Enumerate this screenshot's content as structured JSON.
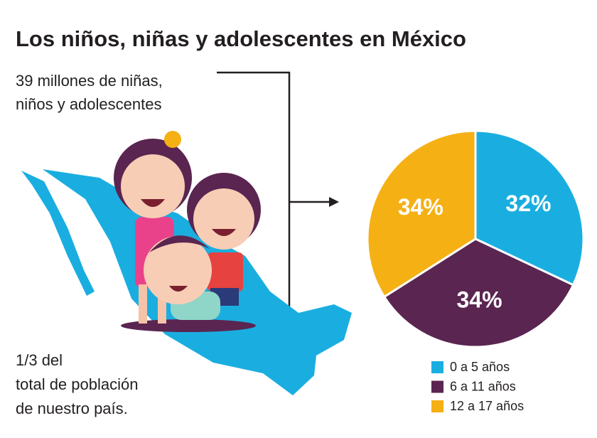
{
  "title": "Los niños, niñas y adolescentes en México",
  "caption_top": [
    "39 millones de niñas,",
    "niños y adolescentes"
  ],
  "caption_bottom": [
    "1/3 del",
    "total de población",
    "de nuestro país."
  ],
  "chart_data": {
    "type": "pie",
    "categories": [
      "0 a 5 años",
      "6 a 11 años",
      "12 a 17 años"
    ],
    "values": [
      32,
      34,
      34
    ],
    "value_labels": [
      "32%",
      "34%",
      "34%"
    ],
    "colors": [
      "#1aaee0",
      "#5a2550",
      "#f5b014"
    ]
  }
}
